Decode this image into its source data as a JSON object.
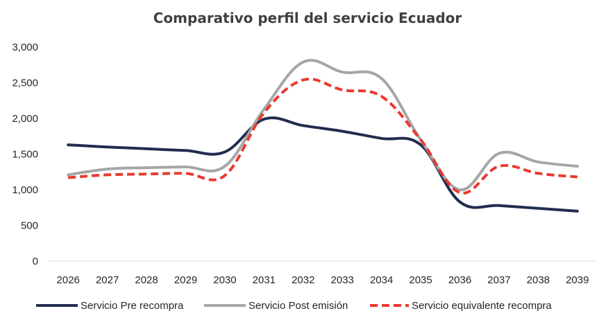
{
  "chart_data": {
    "type": "line",
    "title": "Comparativo perfil del servicio Ecuador",
    "xlabel": "",
    "ylabel": "",
    "ylim": [
      0,
      3000
    ],
    "yticks": [
      0,
      500,
      1000,
      1500,
      2000,
      2500,
      3000
    ],
    "ytick_labels": [
      "0",
      "500",
      "1,000",
      "1,500",
      "2,000",
      "2,500",
      "3,000"
    ],
    "categories": [
      "2026",
      "2027",
      "2028",
      "2029",
      "2030",
      "2031",
      "2032",
      "2033",
      "2034",
      "2035",
      "2036",
      "2037",
      "2038",
      "2039"
    ],
    "grid": false,
    "legend_position": "bottom",
    "series": [
      {
        "name": "Servicio Pre recompra",
        "color": "#1f2d4f",
        "style": "solid",
        "values": [
          1630,
          1600,
          1575,
          1550,
          1530,
          1990,
          1900,
          1820,
          1720,
          1630,
          830,
          780,
          740,
          700
        ]
      },
      {
        "name": "Servicio Post emisión",
        "color": "#a6a6a6",
        "style": "solid",
        "values": [
          1210,
          1290,
          1310,
          1320,
          1330,
          2130,
          2790,
          2650,
          2560,
          1700,
          1000,
          1510,
          1390,
          1330
        ]
      },
      {
        "name": "Servicio equivalente recompra",
        "color": "#e83a30",
        "style": "dashed",
        "values": [
          1170,
          1210,
          1220,
          1230,
          1200,
          2080,
          2540,
          2400,
          2310,
          1700,
          960,
          1330,
          1230,
          1180
        ]
      }
    ]
  }
}
